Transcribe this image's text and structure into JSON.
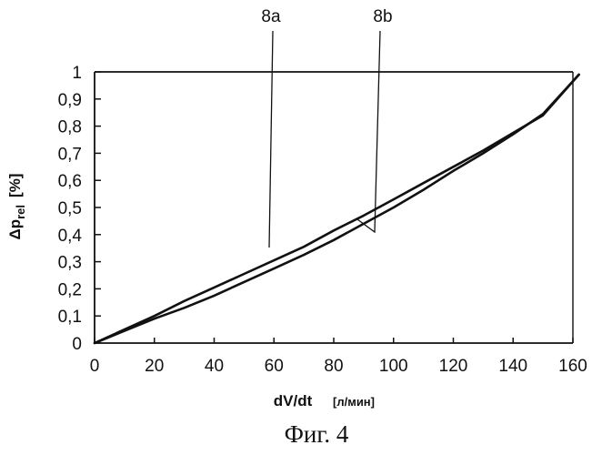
{
  "chart_data": {
    "type": "line",
    "caption": "Фиг. 4",
    "xlabel": "dV/dt",
    "xunit": "[л/мин]",
    "ylabel_main": "Δp",
    "ylabel_sub": "rel",
    "ylabel_unit": "[%]",
    "xlim": [
      0,
      160
    ],
    "ylim": [
      0,
      1
    ],
    "x_ticks": [
      "0",
      "20",
      "40",
      "60",
      "80",
      "100",
      "120",
      "140",
      "160"
    ],
    "y_ticks": [
      "0",
      "0,1",
      "0,2",
      "0,3",
      "0,4",
      "0,5",
      "0,6",
      "0,7",
      "0,8",
      "0,9",
      "1"
    ],
    "grid": false,
    "series": [
      {
        "name": "8a",
        "x": [
          0,
          10,
          20,
          30,
          40,
          50,
          60,
          70,
          80,
          90,
          100,
          110,
          120,
          130,
          140,
          150,
          162
        ],
        "y": [
          0,
          0.05,
          0.1,
          0.155,
          0.205,
          0.255,
          0.305,
          0.355,
          0.415,
          0.47,
          0.53,
          0.59,
          0.65,
          0.71,
          0.775,
          0.84,
          0.99
        ]
      },
      {
        "name": "8b",
        "x": [
          0,
          10,
          20,
          30,
          40,
          50,
          60,
          70,
          80,
          90,
          100,
          110,
          120,
          130,
          140,
          150,
          162
        ],
        "y": [
          0,
          0.045,
          0.09,
          0.13,
          0.175,
          0.225,
          0.275,
          0.325,
          0.38,
          0.44,
          0.5,
          0.565,
          0.635,
          0.7,
          0.77,
          0.845,
          0.99
        ]
      }
    ]
  }
}
